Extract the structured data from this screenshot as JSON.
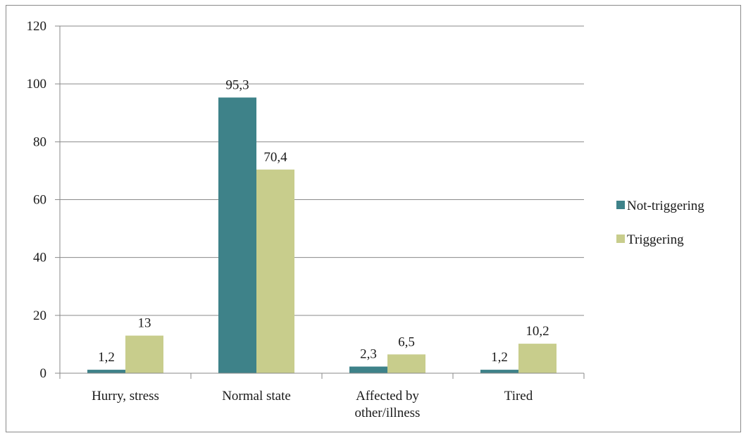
{
  "chart_data": {
    "type": "bar",
    "categories": [
      [
        "Hurry, stress"
      ],
      [
        "Normal state"
      ],
      [
        "Affected by",
        "other/illness"
      ],
      [
        "Tired"
      ]
    ],
    "series": [
      {
        "name": "Not-triggering",
        "values": [
          1.2,
          95.3,
          2.3,
          1.2
        ],
        "labels": [
          "1,2",
          "95,3",
          "2,3",
          "1,2"
        ],
        "color": "#3e8289"
      },
      {
        "name": "Triggering",
        "values": [
          13,
          70.4,
          6.5,
          10.2
        ],
        "labels": [
          "13",
          "70,4",
          "6,5",
          "10,2"
        ],
        "color": "#c8cd8c"
      }
    ],
    "ylim": [
      0,
      120
    ],
    "yticks": [
      0,
      20,
      40,
      60,
      80,
      100,
      120
    ],
    "grid": true,
    "legend": "right",
    "gridline_color": "#8a8a8a"
  }
}
